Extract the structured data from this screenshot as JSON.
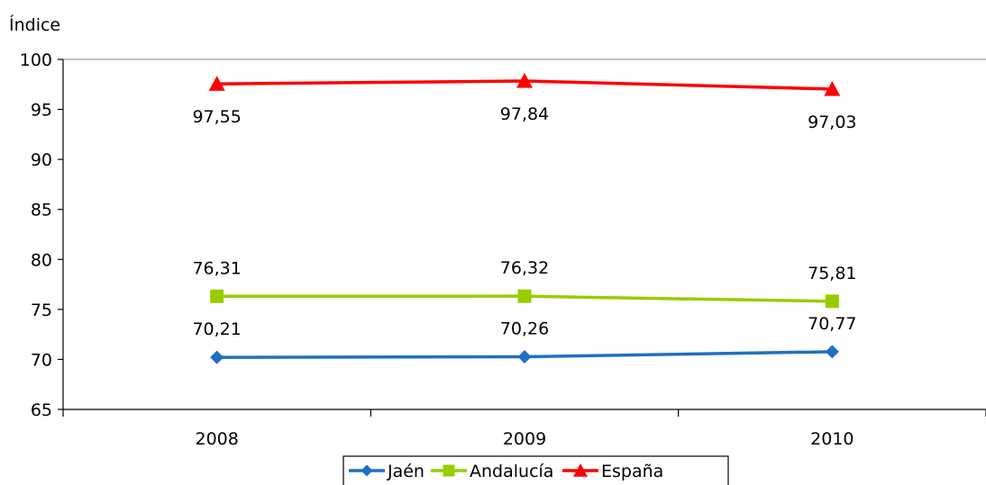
{
  "chart_data": {
    "type": "line",
    "title": "",
    "ylabel": "Índice",
    "xlabel": "",
    "categories": [
      "2008",
      "2009",
      "2010"
    ],
    "ylim": [
      65,
      100
    ],
    "yticks": [
      "65",
      "70",
      "75",
      "80",
      "85",
      "90",
      "95",
      "100"
    ],
    "grid": false,
    "legend_position": "bottom",
    "series": [
      {
        "name": "Jaén",
        "values": [
          70.21,
          70.26,
          70.77
        ],
        "labels": [
          "70,21",
          "70,26",
          "70,77"
        ],
        "color": "#1F6FC5",
        "marker": "diamond"
      },
      {
        "name": "Andalucía",
        "values": [
          76.31,
          76.32,
          75.81
        ],
        "labels": [
          "76,31",
          "76,32",
          "75,81"
        ],
        "color": "#99CC00",
        "marker": "square"
      },
      {
        "name": "España",
        "values": [
          97.55,
          97.84,
          97.03
        ],
        "labels": [
          "97,55",
          "97,84",
          "97,03"
        ],
        "color": "#FF0000",
        "marker": "triangle"
      }
    ]
  }
}
